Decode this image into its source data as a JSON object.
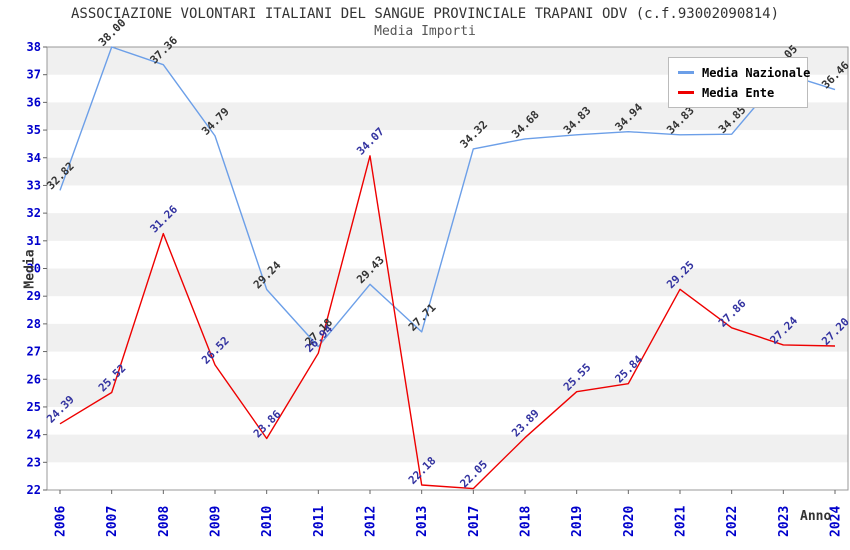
{
  "title": "ASSOCIAZIONE VOLONTARI ITALIANI DEL SANGUE PROVINCIALE TRAPANI ODV (c.f.93002090814)",
  "subtitle": "Media Importi",
  "chart_data": {
    "type": "line",
    "title": "Media Importi",
    "xlabel": "Anno",
    "ylabel": "Media",
    "ylim": [
      22,
      38
    ],
    "y_ticks": [
      22,
      23,
      24,
      25,
      26,
      27,
      28,
      29,
      30,
      31,
      32,
      33,
      34,
      35,
      36,
      37,
      38
    ],
    "x": [
      "2006",
      "2007",
      "2008",
      "2009",
      "2010",
      "2011",
      "2012",
      "2013",
      "2017",
      "2018",
      "2019",
      "2020",
      "2021",
      "2022",
      "2023",
      "2024"
    ],
    "series": [
      {
        "name": "Media Nazionale",
        "color": "#6C9FE8",
        "label_color": "#333333",
        "values": [
          32.82,
          38.0,
          37.36,
          34.79,
          29.24,
          27.18,
          29.43,
          27.71,
          34.32,
          34.68,
          34.83,
          34.94,
          34.83,
          34.85,
          37.05,
          36.46
        ],
        "labels": [
          "32.82",
          "38.00",
          "37.36",
          "34.79",
          "29.24",
          "27.18",
          "29.43",
          "27.71",
          "34.32",
          "34.68",
          "34.83",
          "34.94",
          "34.83",
          "34.85",
          "37.05",
          "36.46"
        ]
      },
      {
        "name": "Media Ente",
        "color": "#EE0000",
        "label_color": "#3333A0",
        "values": [
          24.39,
          25.52,
          31.26,
          26.52,
          23.86,
          26.94,
          34.07,
          22.18,
          22.05,
          23.89,
          25.55,
          25.84,
          29.25,
          27.86,
          27.24,
          27.2
        ],
        "labels": [
          "24.39",
          "25.52",
          "31.26",
          "26.52",
          "23.86",
          "26.94",
          "34.07",
          "22.18",
          "22.05",
          "23.89",
          "25.55",
          "25.84",
          "29.25",
          "27.86",
          "27.24",
          "27.20"
        ]
      }
    ],
    "legend_position": "top-right",
    "grid": "alternating-horizontal-bands",
    "colors": {
      "band": "#F0F0F0",
      "axis_tick_label": "#0000CC",
      "plot_border": "#999999",
      "tick_mark": "#666666"
    }
  }
}
